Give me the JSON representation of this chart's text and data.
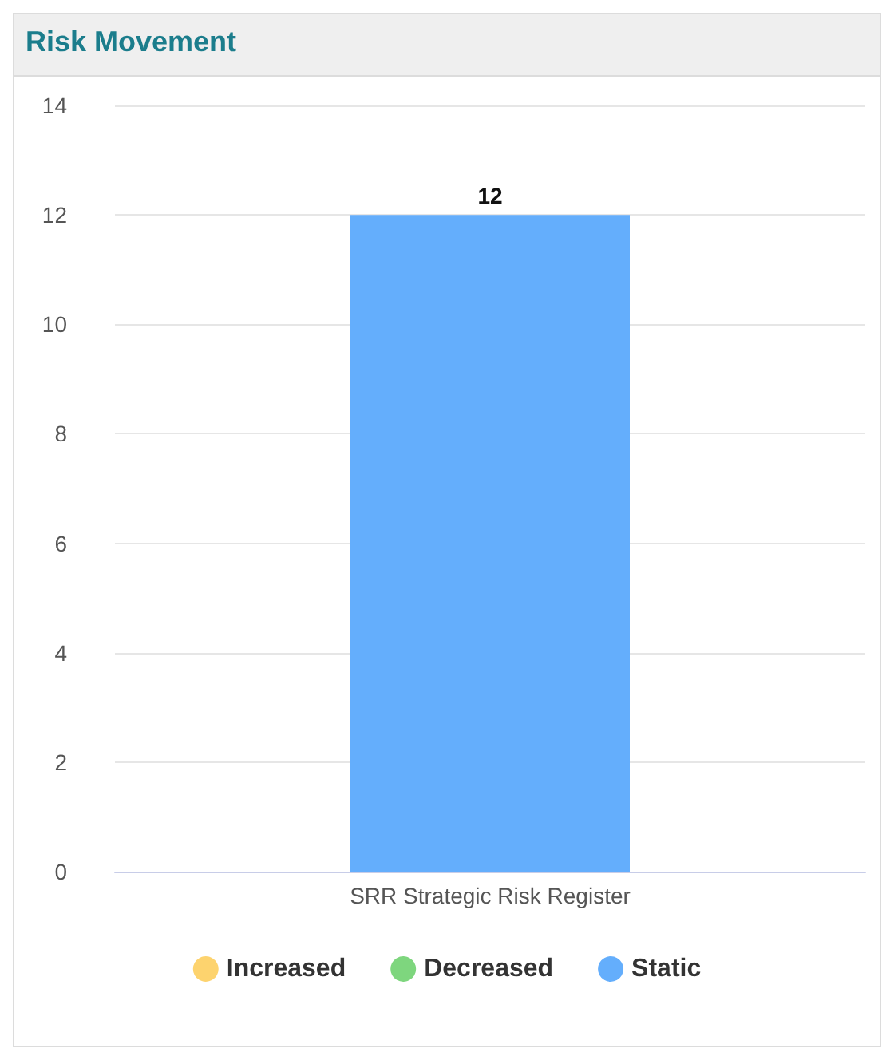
{
  "chart_data": {
    "type": "bar",
    "title": "Risk Movement",
    "categories": [
      "SRR Strategic Risk Register"
    ],
    "series": [
      {
        "name": "Increased",
        "color": "#fdd36e",
        "values": [
          null
        ]
      },
      {
        "name": "Decreased",
        "color": "#7ed67e",
        "values": [
          null
        ]
      },
      {
        "name": "Static",
        "color": "#64aefc",
        "values": [
          12
        ]
      }
    ],
    "ylim": [
      0,
      14
    ],
    "yticks": [
      0,
      2,
      4,
      6,
      8,
      10,
      12,
      14
    ],
    "grid": "y",
    "legend": "bottom",
    "data_labels": true
  }
}
